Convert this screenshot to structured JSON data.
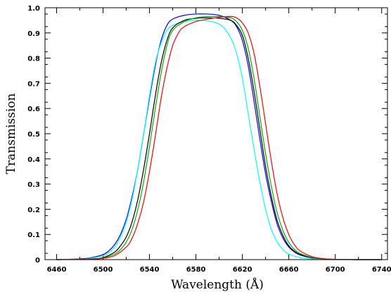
{
  "chart_data": {
    "type": "line",
    "title": "",
    "xlabel": "Wavelength (Å)",
    "ylabel": "Transmission",
    "xlim": [
      6450,
      6745
    ],
    "ylim": [
      0,
      1
    ],
    "x_ticks": [
      6460,
      6500,
      6540,
      6580,
      6620,
      6660,
      6700,
      6740
    ],
    "y_ticks": [
      0,
      0.1,
      0.2,
      0.3,
      0.4,
      0.5,
      0.6,
      0.7,
      0.8,
      0.9,
      1.0
    ],
    "y_tick_labels": [
      "0",
      "0.1",
      "0.2",
      "0.3",
      "0.4",
      "0.5",
      "0.6",
      "0.7",
      "0.8",
      "0.9",
      "1.0"
    ],
    "x_minor_step": 20,
    "y_minor_step": 0.05,
    "grid": false,
    "legend": "none",
    "series": [
      {
        "color": "#0000ff",
        "x": [
          6460,
          6480,
          6490,
          6500,
          6505,
          6510,
          6515,
          6520,
          6525,
          6530,
          6535,
          6540,
          6545,
          6550,
          6555,
          6560,
          6570,
          6580,
          6590,
          6600,
          6610,
          6615,
          6620,
          6625,
          6630,
          6635,
          6640,
          6645,
          6650,
          6655,
          6660,
          6665,
          6670,
          6680,
          6690,
          6700,
          6720,
          6740
        ],
        "y": [
          0.0,
          0.003,
          0.008,
          0.02,
          0.035,
          0.06,
          0.1,
          0.16,
          0.25,
          0.36,
          0.5,
          0.64,
          0.77,
          0.87,
          0.93,
          0.955,
          0.97,
          0.975,
          0.975,
          0.97,
          0.95,
          0.925,
          0.87,
          0.77,
          0.63,
          0.48,
          0.34,
          0.23,
          0.14,
          0.085,
          0.05,
          0.03,
          0.018,
          0.007,
          0.003,
          0.001,
          0.0,
          0.0
        ]
      },
      {
        "color": "#00ffff",
        "x": [
          6460,
          6480,
          6490,
          6500,
          6505,
          6510,
          6515,
          6520,
          6525,
          6530,
          6535,
          6540,
          6545,
          6550,
          6555,
          6560,
          6570,
          6580,
          6590,
          6600,
          6605,
          6610,
          6615,
          6620,
          6625,
          6630,
          6635,
          6640,
          6645,
          6650,
          6655,
          6660,
          6670,
          6680,
          6690,
          6700,
          6720,
          6740
        ],
        "y": [
          0.0,
          0.002,
          0.006,
          0.015,
          0.028,
          0.05,
          0.09,
          0.15,
          0.24,
          0.36,
          0.5,
          0.65,
          0.78,
          0.86,
          0.91,
          0.93,
          0.945,
          0.95,
          0.948,
          0.935,
          0.915,
          0.88,
          0.82,
          0.72,
          0.58,
          0.44,
          0.31,
          0.2,
          0.12,
          0.07,
          0.04,
          0.022,
          0.008,
          0.003,
          0.001,
          0.0,
          0.0,
          0.0
        ]
      },
      {
        "color": "#000000",
        "x": [
          6460,
          6490,
          6500,
          6510,
          6515,
          6520,
          6525,
          6530,
          6535,
          6540,
          6545,
          6550,
          6555,
          6560,
          6570,
          6580,
          6590,
          6600,
          6610,
          6615,
          6620,
          6625,
          6630,
          6635,
          6640,
          6645,
          6650,
          6655,
          6660,
          6665,
          6670,
          6680,
          6690,
          6700,
          6720,
          6740
        ],
        "y": [
          0.0,
          0.003,
          0.008,
          0.03,
          0.055,
          0.09,
          0.15,
          0.24,
          0.36,
          0.5,
          0.65,
          0.78,
          0.87,
          0.92,
          0.95,
          0.958,
          0.96,
          0.958,
          0.95,
          0.93,
          0.89,
          0.8,
          0.67,
          0.52,
          0.37,
          0.25,
          0.155,
          0.095,
          0.055,
          0.033,
          0.02,
          0.008,
          0.003,
          0.001,
          0.0,
          0.0
        ]
      },
      {
        "color": "#00b000",
        "x": [
          6460,
          6490,
          6500,
          6510,
          6515,
          6520,
          6525,
          6530,
          6535,
          6540,
          6545,
          6550,
          6555,
          6560,
          6570,
          6580,
          6590,
          6600,
          6610,
          6615,
          6620,
          6625,
          6630,
          6635,
          6640,
          6645,
          6650,
          6655,
          6660,
          6665,
          6670,
          6680,
          6690,
          6700,
          6720,
          6740
        ],
        "y": [
          0.0,
          0.002,
          0.006,
          0.022,
          0.04,
          0.07,
          0.12,
          0.2,
          0.31,
          0.45,
          0.6,
          0.74,
          0.85,
          0.91,
          0.945,
          0.96,
          0.965,
          0.965,
          0.96,
          0.945,
          0.91,
          0.84,
          0.72,
          0.57,
          0.42,
          0.29,
          0.185,
          0.115,
          0.068,
          0.04,
          0.024,
          0.009,
          0.003,
          0.001,
          0.0,
          0.0
        ]
      },
      {
        "color": "#ff0000",
        "x": [
          6460,
          6490,
          6500,
          6510,
          6520,
          6525,
          6530,
          6535,
          6540,
          6545,
          6550,
          6555,
          6560,
          6565,
          6570,
          6580,
          6590,
          6600,
          6610,
          6615,
          6620,
          6625,
          6630,
          6635,
          6640,
          6645,
          6650,
          6655,
          6660,
          6665,
          6670,
          6680,
          6690,
          6700,
          6720,
          6740
        ],
        "y": [
          0.0,
          0.002,
          0.005,
          0.016,
          0.05,
          0.085,
          0.145,
          0.23,
          0.35,
          0.49,
          0.64,
          0.76,
          0.85,
          0.9,
          0.925,
          0.945,
          0.955,
          0.962,
          0.965,
          0.96,
          0.94,
          0.9,
          0.82,
          0.69,
          0.54,
          0.39,
          0.26,
          0.165,
          0.1,
          0.058,
          0.034,
          0.012,
          0.004,
          0.001,
          0.0,
          0.0
        ]
      }
    ]
  }
}
